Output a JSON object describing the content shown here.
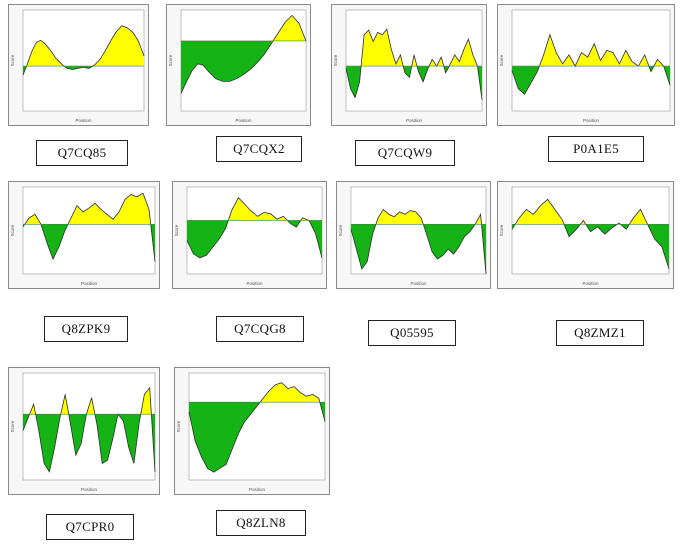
{
  "colors": {
    "above": "#ffff00",
    "below": "#16b316",
    "outline": "#2e2e2e",
    "baseline": "#3a8a3a"
  },
  "chart_data": [
    {
      "id": "Q7CQ85",
      "type": "area",
      "caption": "Q7CQ85",
      "xlabel": "Position",
      "ylabel": "Score",
      "threshold": 0.5,
      "ylim": [
        0.1,
        1.0
      ],
      "x": [
        0,
        4,
        8,
        12,
        16,
        20,
        25,
        30,
        35,
        40,
        45,
        50,
        55,
        60,
        65,
        70,
        75,
        80,
        85,
        90,
        95,
        100,
        105,
        110
      ],
      "values": [
        0.42,
        0.52,
        0.63,
        0.71,
        0.73,
        0.7,
        0.64,
        0.57,
        0.52,
        0.48,
        0.47,
        0.48,
        0.49,
        0.48,
        0.51,
        0.56,
        0.64,
        0.73,
        0.81,
        0.86,
        0.84,
        0.8,
        0.72,
        0.59
      ]
    },
    {
      "id": "Q7CQX2",
      "type": "area",
      "caption": "Q7CQX2",
      "xlabel": "Position",
      "ylabel": "Score",
      "threshold": 0.72,
      "ylim": [
        0.2,
        0.95
      ],
      "x": [
        0,
        4,
        8,
        12,
        16,
        20,
        25,
        30,
        35,
        40,
        45,
        50,
        55,
        60,
        65,
        70,
        75,
        80,
        85,
        90
      ],
      "values": [
        0.33,
        0.42,
        0.5,
        0.55,
        0.54,
        0.49,
        0.44,
        0.42,
        0.42,
        0.44,
        0.47,
        0.51,
        0.56,
        0.62,
        0.7,
        0.78,
        0.86,
        0.91,
        0.85,
        0.72
      ]
    },
    {
      "id": "Q7CQW9",
      "type": "area",
      "caption": "Q7CQW9",
      "xlabel": "Position",
      "ylabel": "Score",
      "threshold": 0.5,
      "ylim": [
        0.1,
        1.0
      ],
      "x": [
        0,
        6,
        12,
        18,
        24,
        30,
        36,
        42,
        48,
        54,
        60,
        66,
        72,
        78,
        84,
        90,
        96,
        102,
        108,
        114,
        120,
        126,
        132,
        138,
        144,
        150,
        156,
        162,
        168,
        174,
        180
      ],
      "values": [
        0.48,
        0.3,
        0.22,
        0.36,
        0.78,
        0.82,
        0.72,
        0.8,
        0.78,
        0.83,
        0.65,
        0.52,
        0.6,
        0.44,
        0.4,
        0.6,
        0.45,
        0.36,
        0.47,
        0.56,
        0.5,
        0.58,
        0.44,
        0.52,
        0.6,
        0.54,
        0.65,
        0.74,
        0.6,
        0.5,
        0.2
      ]
    },
    {
      "id": "P0A1E5",
      "type": "area",
      "caption": "P0A1E5",
      "xlabel": "Position",
      "ylabel": "Score",
      "threshold": 0.5,
      "ylim": [
        0.1,
        1.0
      ],
      "x": [
        0,
        10,
        20,
        30,
        40,
        50,
        60,
        70,
        80,
        90,
        100,
        110,
        120,
        130,
        140,
        150,
        160,
        170,
        180,
        190,
        200,
        210,
        220,
        230,
        240,
        250
      ],
      "values": [
        0.46,
        0.3,
        0.25,
        0.35,
        0.45,
        0.6,
        0.78,
        0.62,
        0.52,
        0.6,
        0.5,
        0.62,
        0.58,
        0.7,
        0.55,
        0.64,
        0.62,
        0.52,
        0.64,
        0.54,
        0.5,
        0.6,
        0.45,
        0.56,
        0.5,
        0.33
      ]
    },
    {
      "id": "Q8ZPK9",
      "type": "area",
      "caption": "Q8ZPK9",
      "xlabel": "Position",
      "ylabel": "Score",
      "threshold": 0.5,
      "ylim": [
        0.1,
        0.8
      ],
      "x": [
        0,
        5,
        10,
        15,
        20,
        25,
        30,
        35,
        40,
        45,
        50,
        55,
        60,
        65,
        70,
        75,
        80,
        85,
        90,
        95,
        100,
        105,
        110
      ],
      "values": [
        0.48,
        0.55,
        0.58,
        0.5,
        0.35,
        0.22,
        0.32,
        0.45,
        0.55,
        0.65,
        0.6,
        0.63,
        0.67,
        0.62,
        0.58,
        0.54,
        0.6,
        0.7,
        0.74,
        0.72,
        0.75,
        0.62,
        0.2
      ]
    },
    {
      "id": "Q7CQG8",
      "type": "area",
      "caption": "Q7CQG8",
      "xlabel": "Position",
      "ylabel": "Score",
      "threshold": 0.5,
      "ylim": [
        0.1,
        0.75
      ],
      "x": [
        0,
        5,
        10,
        15,
        20,
        25,
        30,
        35,
        40,
        45,
        50,
        55,
        60,
        65,
        70,
        75,
        80,
        85,
        90,
        95,
        100,
        105
      ],
      "values": [
        0.35,
        0.25,
        0.22,
        0.24,
        0.3,
        0.36,
        0.44,
        0.58,
        0.67,
        0.62,
        0.57,
        0.53,
        0.56,
        0.55,
        0.51,
        0.53,
        0.48,
        0.45,
        0.52,
        0.5,
        0.4,
        0.22
      ]
    },
    {
      "id": "Q05595",
      "type": "area",
      "caption": "Q05595",
      "xlabel": "Position",
      "ylabel": "Score",
      "threshold": 0.5,
      "ylim": [
        0.1,
        0.8
      ],
      "x": [
        0,
        4,
        8,
        12,
        16,
        20,
        24,
        28,
        32,
        36,
        40,
        44,
        48,
        52,
        56,
        60,
        64,
        68,
        72,
        76,
        80,
        84,
        88,
        92,
        96,
        100
      ],
      "values": [
        0.46,
        0.3,
        0.14,
        0.2,
        0.42,
        0.55,
        0.62,
        0.58,
        0.56,
        0.6,
        0.58,
        0.61,
        0.6,
        0.55,
        0.42,
        0.28,
        0.22,
        0.25,
        0.3,
        0.26,
        0.32,
        0.4,
        0.44,
        0.5,
        0.58,
        0.1
      ]
    },
    {
      "id": "Q8ZMZ1",
      "type": "area",
      "caption": "Q8ZMZ1",
      "xlabel": "Position",
      "ylabel": "Score",
      "threshold": 0.5,
      "ylim": [
        0.1,
        0.8
      ],
      "x": [
        0,
        5,
        10,
        15,
        20,
        25,
        30,
        35,
        40,
        45,
        50,
        55,
        60,
        65,
        70,
        75,
        80,
        85,
        90,
        95,
        100,
        105,
        110
      ],
      "values": [
        0.46,
        0.55,
        0.62,
        0.58,
        0.65,
        0.7,
        0.62,
        0.54,
        0.4,
        0.46,
        0.53,
        0.44,
        0.48,
        0.42,
        0.47,
        0.51,
        0.46,
        0.55,
        0.62,
        0.5,
        0.38,
        0.32,
        0.14
      ]
    },
    {
      "id": "Q7CPR0",
      "type": "area",
      "caption": "Q7CPR0",
      "xlabel": "Position",
      "ylabel": "Score",
      "threshold": 0.5,
      "ylim": [
        0.1,
        0.75
      ],
      "x": [
        0,
        5,
        10,
        15,
        20,
        25,
        30,
        35,
        40,
        45,
        50,
        55,
        60,
        65,
        70,
        75,
        80,
        85,
        90,
        95,
        100,
        105,
        110,
        115,
        120,
        125
      ],
      "values": [
        0.4,
        0.48,
        0.56,
        0.4,
        0.2,
        0.15,
        0.3,
        0.48,
        0.62,
        0.44,
        0.25,
        0.32,
        0.5,
        0.6,
        0.44,
        0.2,
        0.22,
        0.35,
        0.5,
        0.46,
        0.3,
        0.2,
        0.45,
        0.62,
        0.66,
        0.15
      ]
    },
    {
      "id": "Q8ZLN8",
      "type": "area",
      "caption": "Q8ZLN8",
      "xlabel": "Position",
      "ylabel": "Score",
      "threshold": 0.5,
      "ylim": [
        0.1,
        0.65
      ],
      "x": [
        0,
        5,
        10,
        15,
        20,
        25,
        30,
        35,
        40,
        45,
        50,
        55,
        60,
        65,
        70,
        75,
        80,
        85,
        90,
        95,
        100,
        105,
        110
      ],
      "values": [
        0.45,
        0.3,
        0.22,
        0.16,
        0.14,
        0.16,
        0.18,
        0.26,
        0.34,
        0.4,
        0.44,
        0.48,
        0.52,
        0.56,
        0.59,
        0.6,
        0.57,
        0.58,
        0.55,
        0.53,
        0.54,
        0.52,
        0.4
      ]
    }
  ]
}
